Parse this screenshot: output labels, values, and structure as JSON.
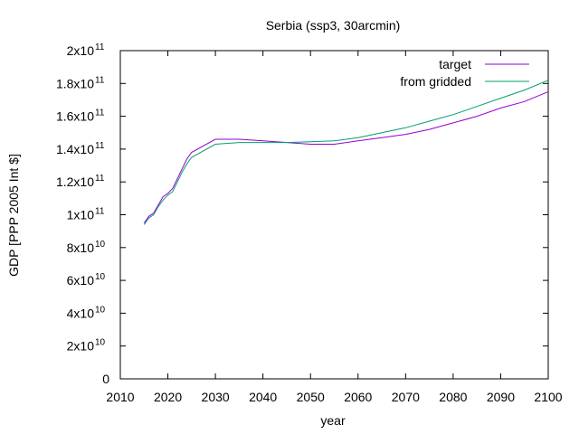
{
  "chart_data": {
    "type": "line",
    "title": "Serbia (ssp3, 30arcmin)",
    "xlabel": "year",
    "ylabel": "GDP [PPP 2005 Int $]",
    "xlim": [
      2010,
      2100
    ],
    "ylim": [
      0,
      200000000000
    ],
    "grid": false,
    "legend_position": "top-right",
    "x_ticks": [
      {
        "value": 2010,
        "label": "2010"
      },
      {
        "value": 2020,
        "label": "2020"
      },
      {
        "value": 2030,
        "label": "2030"
      },
      {
        "value": 2040,
        "label": "2040"
      },
      {
        "value": 2050,
        "label": "2050"
      },
      {
        "value": 2060,
        "label": "2060"
      },
      {
        "value": 2070,
        "label": "2070"
      },
      {
        "value": 2080,
        "label": "2080"
      },
      {
        "value": 2090,
        "label": "2090"
      },
      {
        "value": 2100,
        "label": "2100"
      }
    ],
    "y_ticks": [
      {
        "value": 0,
        "mant": "0",
        "exp": ""
      },
      {
        "value": 20000000000,
        "mant": "2x10",
        "exp": "10"
      },
      {
        "value": 40000000000,
        "mant": "4x10",
        "exp": "10"
      },
      {
        "value": 60000000000,
        "mant": "6x10",
        "exp": "10"
      },
      {
        "value": 80000000000,
        "mant": "8x10",
        "exp": "10"
      },
      {
        "value": 100000000000,
        "mant": "1x10",
        "exp": "11"
      },
      {
        "value": 120000000000,
        "mant": "1.2x10",
        "exp": "11"
      },
      {
        "value": 140000000000,
        "mant": "1.4x10",
        "exp": "11"
      },
      {
        "value": 160000000000,
        "mant": "1.6x10",
        "exp": "11"
      },
      {
        "value": 180000000000,
        "mant": "1.8x10",
        "exp": "11"
      },
      {
        "value": 200000000000,
        "mant": "2x10",
        "exp": "11"
      }
    ],
    "series": [
      {
        "name": "target",
        "color": "#9400d3",
        "x": [
          2015,
          2016,
          2017,
          2018,
          2019,
          2020,
          2021,
          2022,
          2023,
          2024,
          2025,
          2030,
          2035,
          2040,
          2045,
          2050,
          2055,
          2060,
          2065,
          2070,
          2075,
          2080,
          2085,
          2090,
          2095,
          2100
        ],
        "y": [
          95000000000,
          99000000000,
          101000000000,
          106000000000,
          111000000000,
          113000000000,
          116000000000,
          122000000000,
          128000000000,
          134000000000,
          138000000000,
          146000000000,
          146000000000,
          145000000000,
          144000000000,
          143000000000,
          143000000000,
          145000000000,
          147000000000,
          149000000000,
          152000000000,
          156000000000,
          160000000000,
          165000000000,
          169000000000,
          175000000000
        ]
      },
      {
        "name": "from gridded",
        "color": "#009e73",
        "x": [
          2015,
          2016,
          2017,
          2018,
          2019,
          2020,
          2021,
          2022,
          2023,
          2024,
          2025,
          2030,
          2035,
          2040,
          2045,
          2050,
          2055,
          2060,
          2065,
          2070,
          2075,
          2080,
          2085,
          2090,
          2095,
          2100
        ],
        "y": [
          94000000000,
          98000000000,
          100000000000,
          105000000000,
          109000000000,
          112000000000,
          114000000000,
          120000000000,
          126000000000,
          131000000000,
          135000000000,
          143000000000,
          144000000000,
          144000000000,
          144000000000,
          144500000000,
          145000000000,
          147000000000,
          150000000000,
          153000000000,
          157000000000,
          161000000000,
          166000000000,
          171000000000,
          176000000000,
          182000000000
        ]
      }
    ]
  }
}
